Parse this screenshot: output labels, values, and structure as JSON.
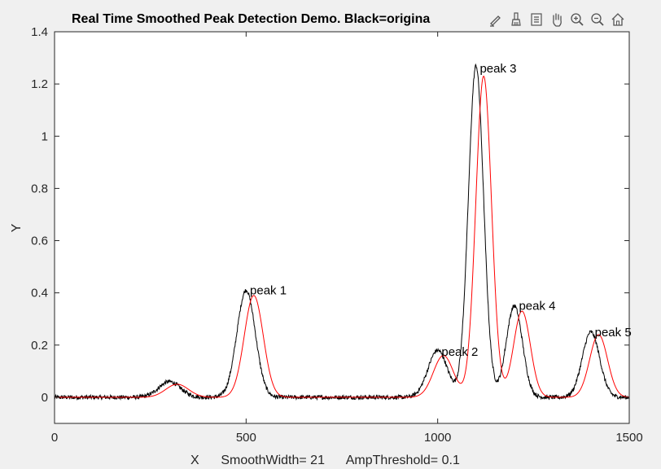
{
  "chart_data": {
    "type": "line",
    "title": "Real Time Smoothed Peak Detection Demo.  Black=origina",
    "xlabel": "X      SmoothWidth= 21      AmpThreshold= 0.1",
    "ylabel": "Y",
    "xlim": [
      0,
      1500
    ],
    "ylim": [
      -0.1,
      1.4
    ],
    "xticks": [
      0,
      500,
      1000,
      1500
    ],
    "xtick_labels": [
      "0",
      "500",
      "1000",
      "1500"
    ],
    "yticks": [
      0,
      0.2,
      0.4,
      0.6,
      0.8,
      1,
      1.2,
      1.4
    ],
    "ytick_labels": [
      "0",
      "0.2",
      "0.4",
      "0.6",
      "0.8",
      "1",
      "1.2",
      "1.4"
    ],
    "grid": false,
    "series": [
      {
        "color": "#000000",
        "components": [
          {
            "center": 300,
            "amp": 0.06,
            "width": 40
          },
          {
            "center": 500,
            "amp": 0.41,
            "width": 34
          },
          {
            "center": 1000,
            "amp": 0.18,
            "width": 36
          },
          {
            "center": 1100,
            "amp": 1.27,
            "width": 28
          },
          {
            "center": 1200,
            "amp": 0.35,
            "width": 30
          },
          {
            "center": 1400,
            "amp": 0.25,
            "width": 32
          }
        ],
        "noise": 0.008
      },
      {
        "color": "#ff0000",
        "components": [
          {
            "center": 320,
            "amp": 0.05,
            "width": 42
          },
          {
            "center": 520,
            "amp": 0.39,
            "width": 35
          },
          {
            "center": 1015,
            "amp": 0.16,
            "width": 37
          },
          {
            "center": 1120,
            "amp": 1.23,
            "width": 29
          },
          {
            "center": 1220,
            "amp": 0.33,
            "width": 31
          },
          {
            "center": 1420,
            "amp": 0.24,
            "width": 33
          }
        ],
        "noise": 0
      }
    ],
    "annotations": [
      {
        "text": "peak 1",
        "x": 510,
        "y": 0.41
      },
      {
        "text": "peak 2",
        "x": 1010,
        "y": 0.175
      },
      {
        "text": "peak 3",
        "x": 1110,
        "y": 1.26
      },
      {
        "text": "peak 4",
        "x": 1212,
        "y": 0.35
      },
      {
        "text": "peak 5",
        "x": 1410,
        "y": 0.25
      }
    ]
  },
  "toolbar": {
    "icons": [
      "brush-edit-icon",
      "data-brush-icon",
      "legend-icon",
      "pan-hand-icon",
      "zoom-in-icon",
      "zoom-out-icon",
      "home-icon"
    ]
  }
}
